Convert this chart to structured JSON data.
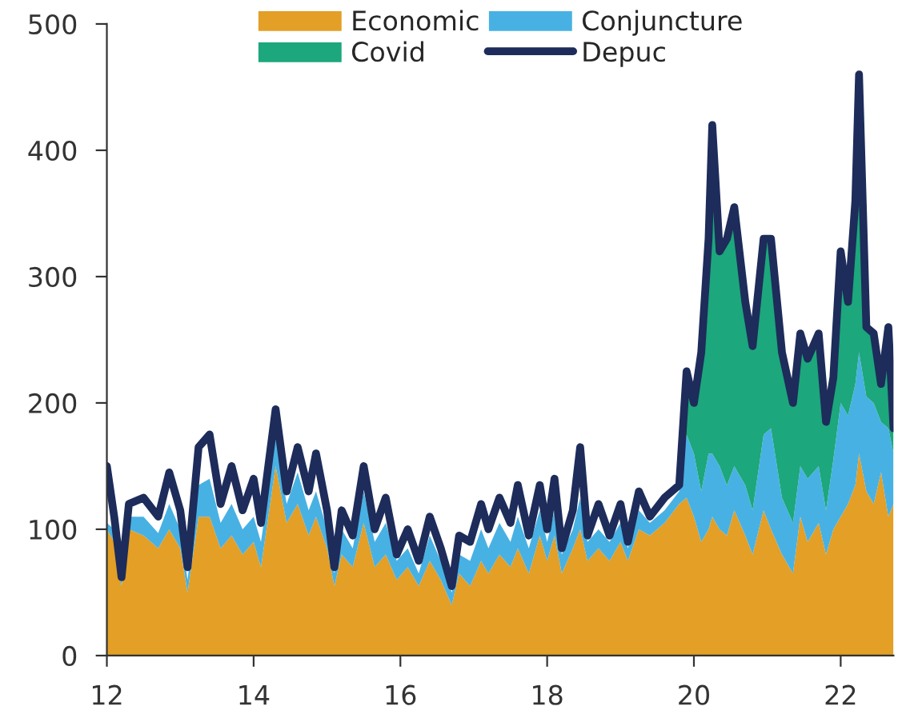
{
  "chart_data": {
    "type": "area",
    "stacked": true,
    "legend": "top",
    "grid": false,
    "x": [
      12.0,
      12.1,
      12.2,
      12.3,
      12.5,
      12.7,
      12.85,
      13.0,
      13.1,
      13.25,
      13.4,
      13.55,
      13.7,
      13.85,
      14.0,
      14.1,
      14.2,
      14.3,
      14.45,
      14.6,
      14.75,
      14.85,
      15.0,
      15.1,
      15.2,
      15.35,
      15.5,
      15.65,
      15.8,
      15.95,
      16.1,
      16.25,
      16.4,
      16.55,
      16.7,
      16.8,
      16.95,
      17.1,
      17.2,
      17.35,
      17.5,
      17.6,
      17.75,
      17.9,
      18.0,
      18.1,
      18.2,
      18.35,
      18.45,
      18.55,
      18.7,
      18.85,
      19.0,
      19.1,
      19.25,
      19.4,
      19.6,
      19.8,
      19.9,
      20.0,
      20.1,
      20.2,
      20.25,
      20.35,
      20.45,
      20.55,
      20.7,
      20.8,
      20.95,
      21.05,
      21.2,
      21.35,
      21.45,
      21.55,
      21.7,
      21.8,
      21.9,
      22.0,
      22.1,
      22.2,
      22.25,
      22.35,
      22.45,
      22.55,
      22.65,
      22.72
    ],
    "series": [
      {
        "name": "Economic",
        "color": "#e39f26",
        "values": [
          100,
          90,
          55,
          100,
          95,
          85,
          100,
          85,
          50,
          110,
          110,
          85,
          95,
          80,
          90,
          70,
          110,
          150,
          105,
          120,
          95,
          110,
          85,
          55,
          80,
          70,
          105,
          70,
          80,
          60,
          70,
          55,
          75,
          60,
          40,
          65,
          55,
          75,
          65,
          80,
          70,
          85,
          65,
          95,
          75,
          95,
          65,
          85,
          100,
          75,
          85,
          75,
          90,
          75,
          100,
          95,
          105,
          120,
          125,
          110,
          90,
          100,
          110,
          100,
          95,
          115,
          95,
          80,
          115,
          100,
          80,
          65,
          110,
          90,
          105,
          80,
          100,
          110,
          120,
          135,
          160,
          130,
          120,
          145,
          110,
          120
        ]
      },
      {
        "name": "Conjuncture",
        "color": "#48b1e3",
        "values": [
          5,
          10,
          5,
          10,
          15,
          12,
          20,
          15,
          10,
          25,
          30,
          20,
          25,
          20,
          20,
          20,
          20,
          25,
          15,
          25,
          20,
          20,
          15,
          10,
          20,
          15,
          25,
          20,
          25,
          15,
          15,
          10,
          20,
          15,
          10,
          15,
          20,
          25,
          20,
          25,
          20,
          25,
          20,
          20,
          15,
          20,
          15,
          15,
          25,
          15,
          15,
          15,
          15,
          10,
          15,
          10,
          10,
          10,
          50,
          50,
          40,
          60,
          50,
          50,
          40,
          35,
          40,
          35,
          60,
          80,
          45,
          40,
          40,
          50,
          45,
          35,
          55,
          90,
          70,
          80,
          80,
          75,
          80,
          40,
          70,
          40
        ]
      },
      {
        "name": "Covid",
        "color": "#1ca77c",
        "values": [
          0,
          0,
          0,
          0,
          0,
          0,
          0,
          0,
          0,
          0,
          0,
          0,
          0,
          0,
          0,
          0,
          0,
          0,
          0,
          0,
          0,
          0,
          0,
          0,
          0,
          0,
          0,
          0,
          0,
          0,
          0,
          0,
          0,
          0,
          0,
          0,
          0,
          0,
          0,
          0,
          0,
          0,
          0,
          0,
          0,
          0,
          0,
          0,
          0,
          0,
          0,
          0,
          0,
          0,
          0,
          0,
          0,
          0,
          40,
          40,
          110,
          170,
          260,
          170,
          195,
          205,
          145,
          130,
          155,
          150,
          115,
          95,
          105,
          95,
          105,
          70,
          65,
          120,
          90,
          140,
          220,
          55,
          55,
          30,
          75,
          20
        ]
      },
      {
        "name": "Depuc",
        "type": "line",
        "color": "#1d2c5a",
        "values": [
          150,
          110,
          62,
          120,
          125,
          110,
          145,
          115,
          70,
          165,
          175,
          120,
          150,
          115,
          140,
          105,
          150,
          195,
          130,
          165,
          130,
          160,
          115,
          70,
          115,
          95,
          150,
          100,
          125,
          80,
          100,
          75,
          110,
          85,
          55,
          95,
          90,
          120,
          100,
          125,
          105,
          135,
          95,
          135,
          100,
          140,
          85,
          115,
          165,
          95,
          120,
          95,
          120,
          90,
          130,
          110,
          125,
          135,
          225,
          200,
          240,
          330,
          420,
          320,
          330,
          355,
          280,
          245,
          330,
          330,
          240,
          200,
          255,
          235,
          255,
          185,
          220,
          320,
          280,
          360,
          460,
          260,
          255,
          215,
          260,
          180
        ]
      }
    ],
    "xlim": [
      12,
      22.72
    ],
    "xticks": [
      12,
      14,
      16,
      18,
      20,
      22
    ],
    "ylim": [
      0,
      500
    ],
    "yticks": [
      0,
      100,
      200,
      300,
      400,
      500
    ]
  }
}
